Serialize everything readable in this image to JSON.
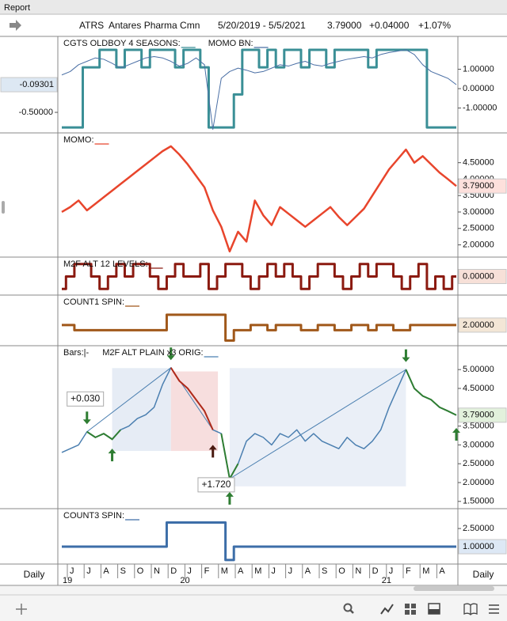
{
  "window_title": "Report",
  "header": {
    "symbol": "ATRS",
    "name": "Antares Pharma Cmn",
    "date_range": "5/20/2019 - 5/5/2021",
    "last": "3.79000",
    "change": "+0.04000",
    "change_pct": "+1.07%"
  },
  "x_axis": {
    "period": "Daily",
    "months": [
      "J",
      "J",
      "A",
      "S",
      "O",
      "N",
      "D",
      "J",
      "F",
      "M",
      "A",
      "M",
      "J",
      "J",
      "A",
      "S",
      "O",
      "N",
      "D",
      "J",
      "F",
      "M",
      "A"
    ],
    "years": [
      "19",
      null,
      null,
      null,
      null,
      null,
      null,
      "20",
      null,
      null,
      null,
      null,
      null,
      null,
      null,
      null,
      null,
      null,
      null,
      "21",
      null,
      null,
      null
    ]
  },
  "chart_data": [
    {
      "type": "line",
      "legend": [
        {
          "text": "CGTS OLDBOY 4 SEASONS:",
          "color": "#3a8f96"
        },
        {
          "text": "MOMO BN:",
          "color": "#4a6fa5"
        }
      ],
      "ylim": [
        -2.16,
        2.53
      ],
      "yticks": [
        {
          "value": 1,
          "label": "1.00000"
        },
        {
          "value": 0,
          "label": "0.00000"
        },
        {
          "value": -1,
          "label": "-1.00000"
        }
      ],
      "y2lim": [
        -0.767,
        0.57
      ],
      "y2ticks": [
        {
          "value": -0.5,
          "label": "-0.50000"
        }
      ],
      "series": [
        {
          "style": "step",
          "color": "#3a8f96",
          "width": 3,
          "values": [
            -2,
            -2,
            -2,
            1.1,
            1.1,
            2,
            2,
            1.1,
            2,
            2,
            1.1,
            2,
            2,
            2,
            1.1,
            2,
            2,
            1.1,
            -2,
            -2,
            -2,
            -0.3,
            2,
            2,
            1.1,
            2,
            1.1,
            2,
            2,
            1.1,
            2,
            2,
            1.1,
            2,
            2,
            2,
            2,
            1.1,
            2,
            2,
            2,
            2,
            2,
            2,
            -2,
            -2,
            -2,
            -2
          ]
        },
        {
          "style": "line",
          "color": "#4a6fa5",
          "width": 1,
          "axis": "y2",
          "last_label": "-0.09301",
          "label_bg": "#dde8f3",
          "values": [
            0.05,
            0.1,
            0.2,
            0.25,
            0.3,
            0.28,
            0.22,
            0.15,
            0.2,
            0.25,
            0.3,
            0.32,
            0.3,
            0.25,
            0.18,
            0.22,
            0.3,
            0.2,
            -0.75,
            0.0,
            0.1,
            0.15,
            0.12,
            0.08,
            0.1,
            0.15,
            0.2,
            0.18,
            0.22,
            0.25,
            0.2,
            0.18,
            0.22,
            0.25,
            0.28,
            0.3,
            0.32,
            0.3,
            0.35,
            0.38,
            0.4,
            0.42,
            0.35,
            0.2,
            0.1,
            0.05,
            0.0,
            -0.09301
          ]
        }
      ]
    },
    {
      "type": "line",
      "legend": [
        {
          "text": "MOMO:",
          "color": "#e8452c"
        }
      ],
      "ylim": [
        1.7,
        5.31
      ],
      "yticks": [
        {
          "value": 4.5,
          "label": "4.50000"
        },
        {
          "value": 4,
          "label": "4.00000"
        },
        {
          "value": 3.5,
          "label": "3.50000"
        },
        {
          "value": 3,
          "label": "3.00000"
        },
        {
          "value": 2.5,
          "label": "2.50000"
        },
        {
          "value": 2,
          "label": "2.00000"
        }
      ],
      "series": [
        {
          "style": "line",
          "color": "#e8452c",
          "width": 2.5,
          "last_label": "3.79000",
          "label_bg": "#fde0dc",
          "values": [
            3.0,
            3.15,
            3.35,
            3.05,
            3.25,
            3.45,
            3.65,
            3.85,
            4.05,
            4.25,
            4.45,
            4.65,
            4.85,
            5.0,
            4.75,
            4.45,
            4.1,
            3.75,
            3.05,
            2.55,
            1.8,
            2.4,
            2.1,
            3.35,
            2.9,
            2.6,
            3.15,
            2.95,
            2.75,
            2.55,
            2.75,
            2.95,
            3.15,
            2.85,
            2.6,
            2.85,
            3.1,
            3.5,
            3.9,
            4.3,
            4.6,
            4.9,
            4.5,
            4.7,
            4.45,
            4.2,
            4.0,
            3.79
          ]
        }
      ]
    },
    {
      "type": "line",
      "legend": [
        {
          "text": "M2F ALT 12 LEVELS:",
          "color": "#8b1a10"
        }
      ],
      "ylim": [
        -1.3,
        1.3
      ],
      "yticks": [],
      "series": [
        {
          "style": "step",
          "color": "#8b1a10",
          "width": 3,
          "last_label": "0.00000",
          "label_bg": "#f7e0d8",
          "values": [
            -1,
            0,
            1,
            1,
            0,
            -1,
            0,
            1,
            0,
            1,
            1,
            0,
            -1,
            0,
            1,
            0,
            0,
            1,
            -1,
            0,
            1,
            1,
            0,
            -1,
            0,
            1,
            0,
            1,
            0,
            -1,
            0,
            1,
            1,
            0,
            -1,
            0,
            1,
            0,
            1,
            1,
            0,
            -1,
            0,
            1,
            -1,
            0,
            -1,
            0
          ]
        }
      ]
    },
    {
      "type": "line",
      "legend": [
        {
          "text": "COUNT1 SPIN:",
          "color": "#a0581a"
        }
      ],
      "ylim": [
        0.23,
        4.6
      ],
      "yticks": [],
      "series": [
        {
          "style": "step",
          "color": "#a0581a",
          "width": 3,
          "last_label": "2.00000",
          "label_bg": "#f3e6d6",
          "values": [
            2,
            2,
            1.5,
            1.5,
            1.5,
            1.5,
            1.5,
            1.5,
            1.5,
            1.5,
            1.5,
            1.5,
            1.5,
            3,
            3,
            3,
            3,
            3,
            3,
            3,
            0.5,
            1.5,
            1.5,
            2,
            2,
            1.5,
            2,
            2,
            2,
            1.5,
            1.5,
            2,
            2,
            1.5,
            1.5,
            2,
            2,
            1.5,
            2,
            2,
            1.5,
            1.5,
            2,
            2,
            2,
            2,
            2,
            2
          ]
        }
      ]
    },
    {
      "type": "line",
      "legend": [
        {
          "text": "Bars:|-"
        },
        {
          "text": "M2F ALT PLAIN x3 ORIG:",
          "color": "#4b7fb0"
        }
      ],
      "ylim": [
        1.37,
        5.55
      ],
      "yticks": [
        {
          "value": 5,
          "label": "5.00000"
        },
        {
          "value": 4.5,
          "label": "4.50000"
        },
        {
          "value": 3.5,
          "label": "3.50000"
        },
        {
          "value": 3,
          "label": "3.00000"
        },
        {
          "value": 2.5,
          "label": "2.50000"
        },
        {
          "value": 2,
          "label": "2.00000"
        },
        {
          "value": 1.5,
          "label": "1.50000"
        }
      ],
      "regions": [
        {
          "from": 6,
          "to": 13,
          "low": 2.84,
          "high": 5.04,
          "color": "#e6ecf5"
        },
        {
          "from": 13,
          "to": 18.6,
          "low": 2.84,
          "high": 4.95,
          "color": "#f7dede"
        },
        {
          "from": 20,
          "to": 41,
          "low": 1.9,
          "high": 5.04,
          "color": "#eaeff7"
        }
      ],
      "trend_lines": [
        {
          "from": [
            3,
            3.35
          ],
          "to": [
            13,
            5.05
          ]
        },
        {
          "from": [
            13,
            5.05
          ],
          "to": [
            18,
            3.4
          ]
        },
        {
          "from": [
            20,
            2.1
          ],
          "to": [
            41,
            5.0
          ]
        }
      ],
      "series": [
        {
          "style": "line",
          "color": "#4b7fb0",
          "width": 1.5,
          "last_label": "3.79000",
          "label_bg": "#e2f1dc",
          "values": [
            2.8,
            2.9,
            3.0,
            3.35,
            3.2,
            3.3,
            3.15,
            3.4,
            3.5,
            3.7,
            3.8,
            4.0,
            4.6,
            5.05,
            4.7,
            4.5,
            4.2,
            3.9,
            3.4,
            3.3,
            2.1,
            2.5,
            3.1,
            3.3,
            3.2,
            3.0,
            3.3,
            3.2,
            3.4,
            3.1,
            3.3,
            3.1,
            3.0,
            2.9,
            3.2,
            3.0,
            2.9,
            3.1,
            3.4,
            4.0,
            4.5,
            5.0,
            4.5,
            4.3,
            4.2,
            4.0,
            3.9,
            3.79
          ],
          "highlights": [
            {
              "from": 3,
              "to": 7,
              "color": "#2e7d32"
            },
            {
              "from": 13,
              "to": 18,
              "color": "#b02a1a"
            },
            {
              "from": 19,
              "to": 21,
              "color": "#2e7d32"
            },
            {
              "from": 41,
              "to": 47,
              "color": "#2e7d32"
            }
          ]
        }
      ],
      "arrows": [
        {
          "at": [
            3,
            3.55
          ],
          "dir": "down",
          "color": "#2e7d32"
        },
        {
          "at": [
            6,
            2.9
          ],
          "dir": "up",
          "color": "#2e7d32"
        },
        {
          "at": [
            13,
            5.25
          ],
          "dir": "down",
          "color": "#2e7d32"
        },
        {
          "at": [
            18,
            3.0
          ],
          "dir": "up",
          "color": "#4a1a10"
        },
        {
          "at": [
            20,
            1.75
          ],
          "dir": "up",
          "color": "#2e7d32"
        },
        {
          "at": [
            41,
            5.2
          ],
          "dir": "down",
          "color": "#2e7d32"
        },
        {
          "at": [
            47,
            3.45
          ],
          "dir": "up",
          "color": "#2e7d32"
        }
      ],
      "annotations": [
        {
          "text": "+0.030",
          "at": [
            2.8,
            4.22
          ],
          "color": "#2e7d32"
        },
        {
          "text": "+1.720",
          "at": [
            18.4,
            1.94
          ],
          "color": "#b02a1a"
        }
      ]
    },
    {
      "type": "line",
      "legend": [
        {
          "text": "COUNT3 SPIN:",
          "color": "#3d6ea8"
        }
      ],
      "ylim": [
        -0.24,
        3.88
      ],
      "yticks": [
        {
          "value": 2.5,
          "label": "2.50000"
        }
      ],
      "series": [
        {
          "style": "step",
          "color": "#3d6ea8",
          "width": 3,
          "last_label": "1.00000",
          "label_bg": "#dde8f5",
          "values": [
            1,
            1,
            1,
            1,
            1,
            1,
            1,
            1,
            1,
            1,
            1,
            1,
            1,
            3,
            3,
            3,
            3,
            3,
            3,
            3,
            -0.1,
            1,
            1,
            1,
            1,
            1,
            1,
            1,
            1,
            1,
            1,
            1,
            1,
            1,
            1,
            1,
            1,
            1,
            1,
            1,
            1,
            1,
            1,
            1,
            1,
            1,
            1,
            1
          ]
        }
      ]
    }
  ]
}
